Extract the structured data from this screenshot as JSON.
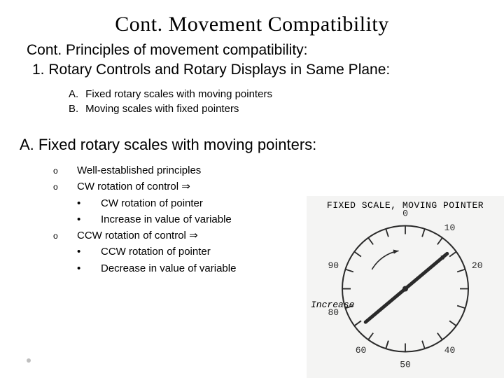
{
  "title": "Cont. Movement Compatibility",
  "subtitle": "Cont. Principles of movement compatibility:",
  "numbered": "1. Rotary Controls and Rotary Displays in Same Plane:",
  "lettered": {
    "a_lbl": "A.",
    "a": "Fixed rotary scales with moving pointers",
    "b_lbl": "B.",
    "b": "Moving scales with fixed pointers"
  },
  "sectionA": "A.  Fixed rotary scales with moving pointers:",
  "bullets": {
    "o": "o",
    "dot": "•",
    "arrow": "⇒",
    "p1": "Well-established principles",
    "p2_pre": "CW rotation of control ",
    "p2a": "CW rotation of pointer",
    "p2b": "Increase in value of variable",
    "p3_pre": "CCW rotation of control ",
    "p3a": "CCW rotation of pointer",
    "p3b": "Decrease in value of variable"
  },
  "figure": {
    "title": "FIXED SCALE, MOVING POINTER",
    "increase": "Increase",
    "dial": {
      "radius": 90,
      "stroke": "#2a2a2a",
      "stroke_width": 2,
      "tick_major_len": 12,
      "tick_minor_len": 7,
      "label_radius": 108,
      "label_font": "13px 'Courier New', monospace",
      "labels": [
        {
          "angle_deg": 90,
          "text": "0"
        },
        {
          "angle_deg": 54,
          "text": "10"
        },
        {
          "angle_deg": 18,
          "text": "20"
        },
        {
          "angle_deg": -54,
          "text": "40"
        },
        {
          "angle_deg": -90,
          "text": "50"
        },
        {
          "angle_deg": -126,
          "text": "60"
        },
        {
          "angle_deg": 198,
          "text": "80"
        },
        {
          "angle_deg": 162,
          "text": "90"
        }
      ],
      "ticks_deg": [
        90,
        72,
        54,
        36,
        18,
        0,
        -18,
        -36,
        -54,
        -72,
        -90,
        -108,
        -126,
        -144,
        -162,
        -180,
        162,
        180,
        198,
        216,
        234,
        252,
        126,
        144,
        108
      ],
      "pointer_angle_deg": 40,
      "pointer_len": 78,
      "pointer_width": 5,
      "arc_arrow": {
        "start_deg": 150,
        "end_deg": 100,
        "r": 55
      }
    }
  }
}
